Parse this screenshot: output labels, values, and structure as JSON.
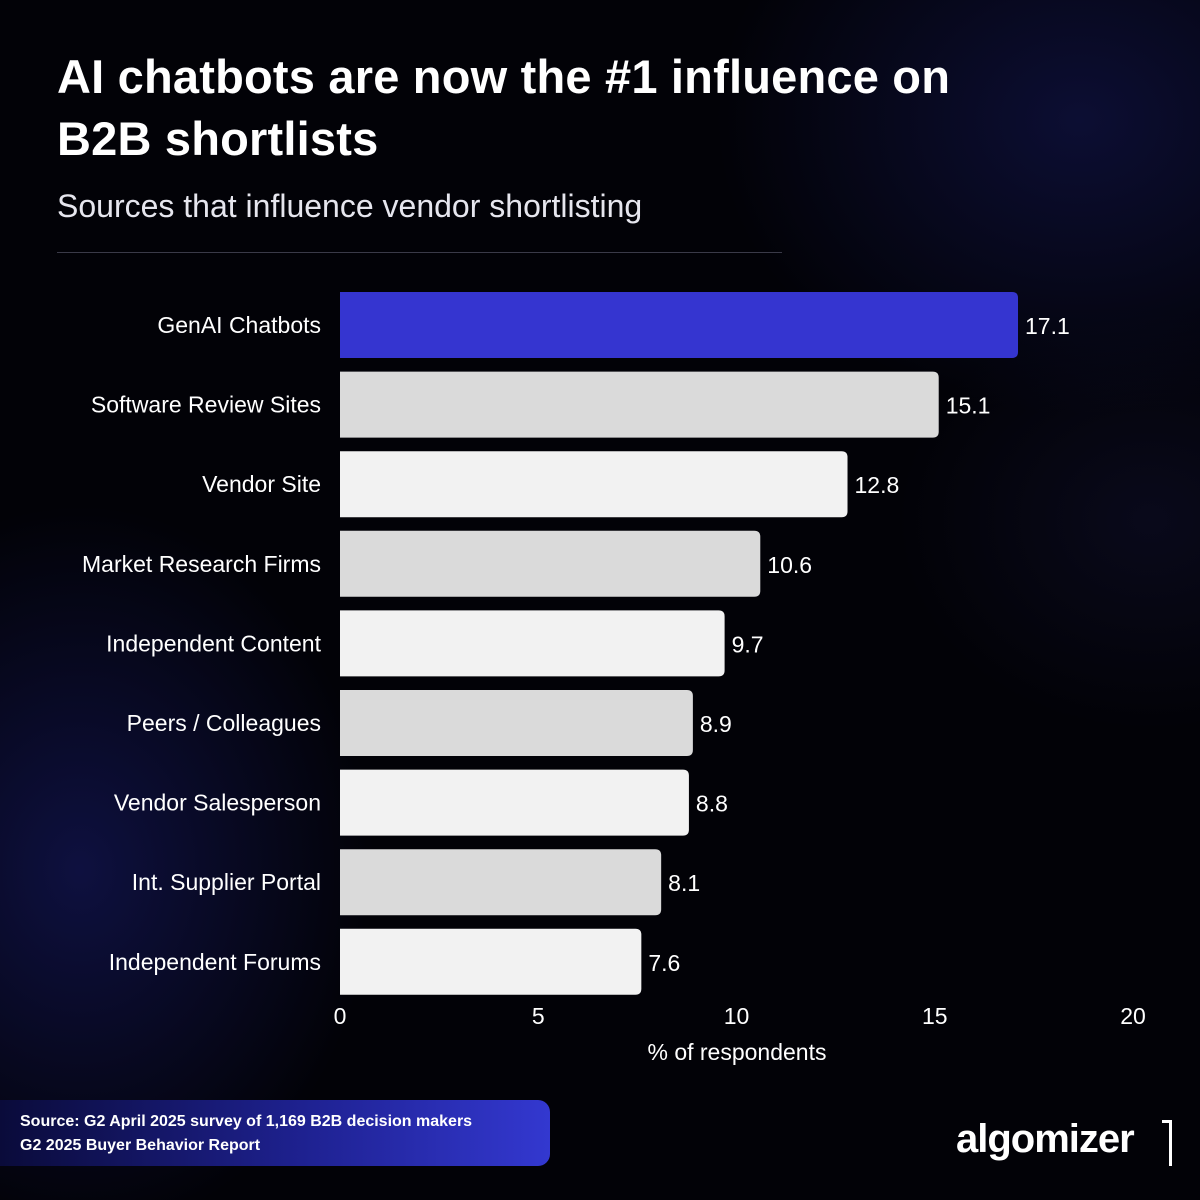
{
  "header": {
    "title": "AI chatbots are now the #1 influence on B2B shortlists",
    "subtitle": "Sources that influence vendor shortlisting"
  },
  "chart_data": {
    "type": "bar",
    "orientation": "horizontal",
    "categories": [
      "GenAI Chatbots",
      "Software Review Sites",
      "Vendor Site",
      "Market Research Firms",
      "Independent Content",
      "Peers / Colleagues",
      "Vendor Salesperson",
      "Int. Supplier Portal",
      "Independent Forums"
    ],
    "values": [
      17.1,
      15.1,
      12.8,
      10.6,
      9.7,
      8.9,
      8.8,
      8.1,
      7.6
    ],
    "value_labels": [
      "17.1",
      "15.1",
      "12.8",
      "10.6",
      "9.7",
      "8.9",
      "8.8",
      "8.1",
      "7.6"
    ],
    "xlabel": "% of respondents",
    "xlim": [
      0,
      20
    ],
    "xticks": [
      0,
      5,
      10,
      15,
      20
    ],
    "xtick_labels": [
      "0",
      "5",
      "10",
      "15",
      "20"
    ],
    "grid": false,
    "colors": {
      "highlight": "#3535d0",
      "alt_a": "#dadada",
      "alt_b": "#f2f2f2"
    }
  },
  "footer": {
    "source_line1": "Source: G2 April 2025 survey of 1,169 B2B decision makers",
    "source_line2": "G2 2025 Buyer Behavior Report",
    "logo_text": "algomizer"
  }
}
